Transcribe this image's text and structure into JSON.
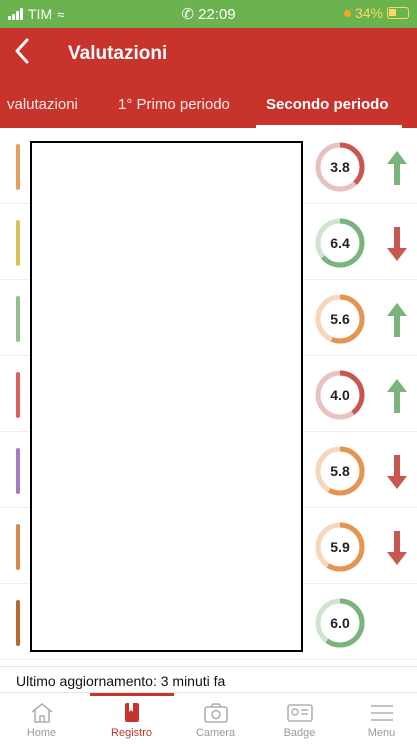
{
  "status_bar": {
    "carrier": "TIM",
    "time": "22:09",
    "battery": "34%",
    "colors": {
      "bg": "#6ab34f",
      "battery": "#ffd766"
    }
  },
  "header": {
    "title": "Valutazioni",
    "back_icon": "chevron-left-icon",
    "color": "#c8332c"
  },
  "tabs": [
    {
      "label": "valutazioni",
      "active": false
    },
    {
      "label": "1° Primo periodo",
      "active": false
    },
    {
      "label": "Secondo periodo",
      "active": true
    }
  ],
  "grades": [
    {
      "value": "3.8",
      "bar_color": "#e3a15f",
      "ring_color": "#c8574f",
      "ring_bg": "#e8c2bf",
      "fraction": 0.38,
      "trend": "up"
    },
    {
      "value": "6.4",
      "bar_color": "#d9c557",
      "ring_color": "#7ab37b",
      "ring_bg": "#cfe3cf",
      "fraction": 0.64,
      "trend": "down"
    },
    {
      "value": "5.6",
      "bar_color": "#93c08d",
      "ring_color": "#e39551",
      "ring_bg": "#f6d7bb",
      "fraction": 0.56,
      "trend": "up"
    },
    {
      "value": "4.0",
      "bar_color": "#d9625e",
      "ring_color": "#c8574f",
      "ring_bg": "#e8c2bf",
      "fraction": 0.4,
      "trend": "up"
    },
    {
      "value": "5.8",
      "bar_color": "#a67cc0",
      "ring_color": "#e39551",
      "ring_bg": "#f6d7bb",
      "fraction": 0.58,
      "trend": "down"
    },
    {
      "value": "5.9",
      "bar_color": "#d58a4a",
      "ring_color": "#e39551",
      "ring_bg": "#f6d7bb",
      "fraction": 0.59,
      "trend": "down"
    },
    {
      "value": "6.0",
      "bar_color": "#b36a2c",
      "ring_color": "#7ab37b",
      "ring_bg": "#cfe3cf",
      "fraction": 0.6,
      "trend": "none"
    }
  ],
  "trend_colors": {
    "up": "#7ab37b",
    "down": "#c8574f"
  },
  "last_update": "Ultimo aggiornamento: 3 minuti fa",
  "tabbar": [
    {
      "label": "Home",
      "icon": "home-icon",
      "active": false
    },
    {
      "label": "Registro",
      "icon": "book-icon",
      "active": true
    },
    {
      "label": "Camera",
      "icon": "camera-icon",
      "active": false
    },
    {
      "label": "Badge",
      "icon": "badge-icon",
      "active": false
    },
    {
      "label": "Menu",
      "icon": "menu-icon",
      "active": false
    }
  ]
}
